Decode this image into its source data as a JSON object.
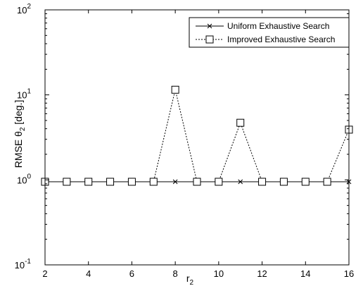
{
  "chart_data": {
    "type": "line",
    "xlabel": "r",
    "xlabel_subscript": "2",
    "ylabel": {
      "prefix": "RMSE ",
      "symbol": "θ",
      "subscript": "2",
      "suffix": " [deg.]"
    },
    "y_scale": "log",
    "xlim": [
      2,
      16
    ],
    "ylim": [
      0.1,
      100
    ],
    "x_ticks": [
      2,
      4,
      6,
      8,
      10,
      12,
      14,
      16
    ],
    "x_tick_labels": [
      "2",
      "4",
      "6",
      "8",
      "10",
      "12",
      "14",
      "16"
    ],
    "y_ticks": [
      {
        "value": 0.1,
        "base": "10",
        "exp": "-1"
      },
      {
        "value": 1,
        "base": "10",
        "exp": "0"
      },
      {
        "value": 10,
        "base": "10",
        "exp": "1"
      },
      {
        "value": 100,
        "base": "10",
        "exp": "2"
      }
    ],
    "grid": false,
    "legend_position": "top-right",
    "x": [
      2,
      3,
      4,
      5,
      6,
      7,
      8,
      9,
      10,
      11,
      12,
      13,
      14,
      15,
      16
    ],
    "series": [
      {
        "name": "Uniform Exhaustive Search",
        "marker": "x",
        "line_style": "solid",
        "color": "#000000",
        "values": [
          0.95,
          0.95,
          0.95,
          0.95,
          0.95,
          0.95,
          0.95,
          0.95,
          0.95,
          0.95,
          0.95,
          0.95,
          0.95,
          0.95,
          0.95
        ]
      },
      {
        "name": "Improved Exhaustive Search",
        "marker": "square",
        "line_style": "dotted",
        "color": "#000000",
        "values": [
          0.95,
          0.95,
          0.95,
          0.95,
          0.95,
          0.95,
          11.5,
          0.95,
          0.95,
          4.7,
          0.95,
          0.95,
          0.95,
          0.95,
          3.9
        ]
      }
    ]
  }
}
